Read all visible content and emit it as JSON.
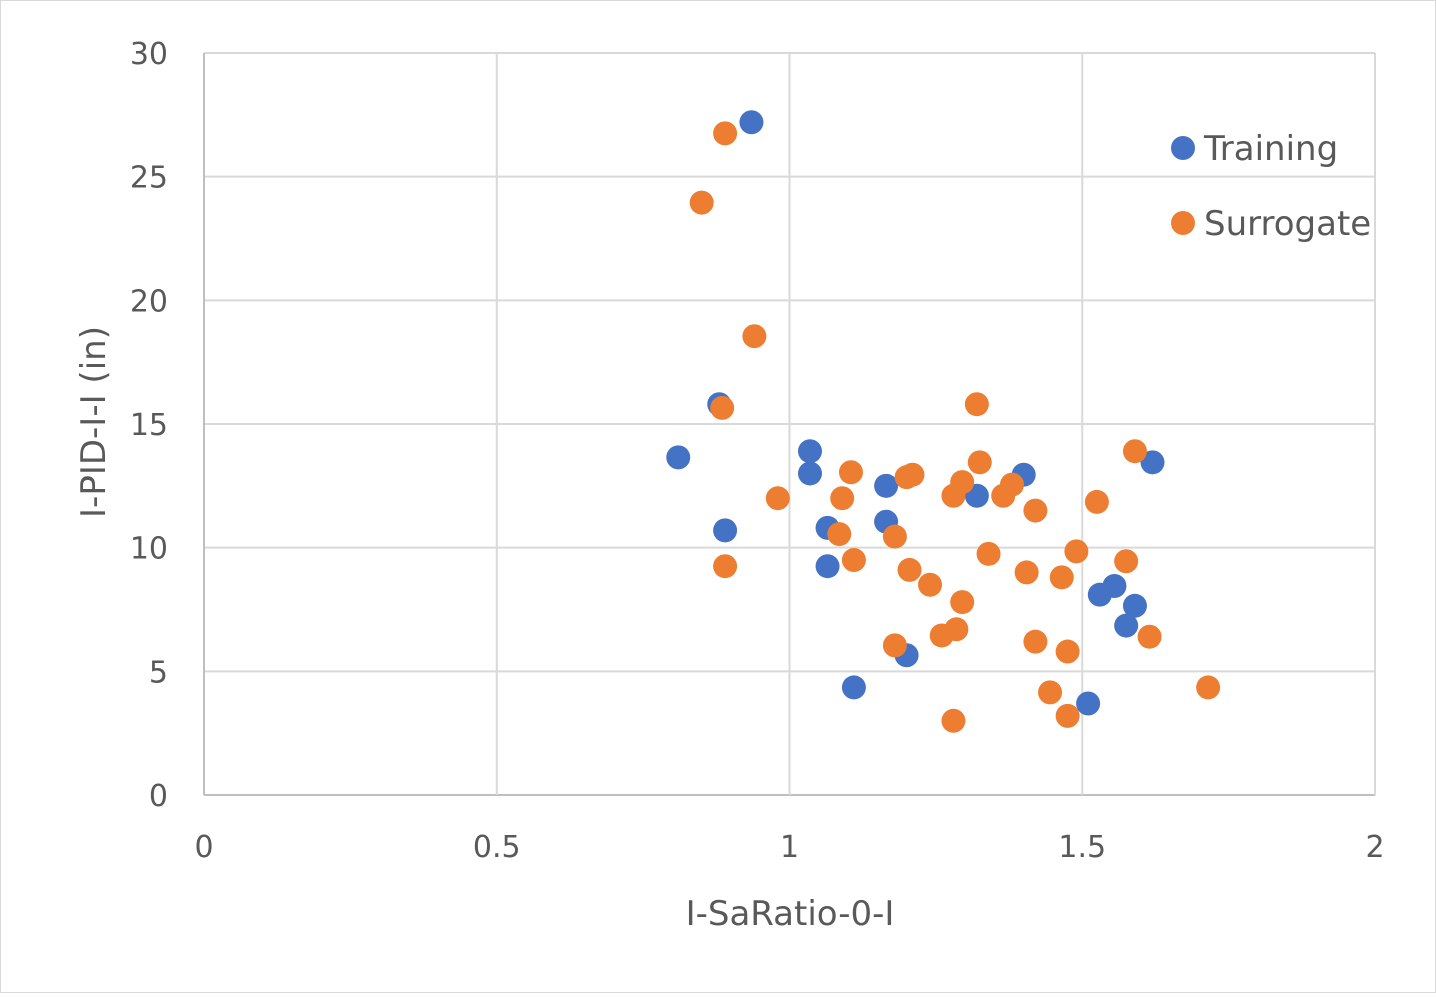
{
  "chart_data": {
    "type": "scatter",
    "title": "",
    "xlabel": "I-SaRatio-0-I",
    "ylabel": "I-PID-I-I (in)",
    "xlim": [
      0,
      2
    ],
    "ylim": [
      0,
      30
    ],
    "x_ticks": [
      0,
      0.5,
      1,
      1.5,
      2
    ],
    "y_ticks": [
      0,
      5,
      10,
      15,
      20,
      25,
      30
    ],
    "x_tick_labels": [
      "0",
      "0.5",
      "1",
      "1.5",
      "2"
    ],
    "y_tick_labels": [
      "0",
      "5",
      "10",
      "15",
      "20",
      "25",
      "30"
    ],
    "grid": true,
    "legend_position": "top-right",
    "series": [
      {
        "name": "Training",
        "color": "#4472c4",
        "points": [
          [
            0.935,
            27.2
          ],
          [
            0.88,
            15.8
          ],
          [
            0.81,
            13.65
          ],
          [
            0.89,
            10.7
          ],
          [
            1.035,
            13.9
          ],
          [
            1.035,
            13.0
          ],
          [
            1.065,
            10.8
          ],
          [
            1.065,
            9.25
          ],
          [
            1.11,
            4.35
          ],
          [
            1.165,
            12.5
          ],
          [
            1.165,
            11.05
          ],
          [
            1.2,
            5.65
          ],
          [
            1.32,
            12.1
          ],
          [
            1.4,
            12.95
          ],
          [
            1.51,
            3.7
          ],
          [
            1.53,
            8.1
          ],
          [
            1.555,
            8.45
          ],
          [
            1.575,
            6.85
          ],
          [
            1.59,
            7.65
          ],
          [
            1.62,
            13.45
          ]
        ]
      },
      {
        "name": "Surrogate",
        "color": "#ed7d31",
        "points": [
          [
            0.89,
            26.75
          ],
          [
            0.85,
            23.95
          ],
          [
            0.94,
            18.55
          ],
          [
            0.885,
            15.65
          ],
          [
            0.89,
            9.25
          ],
          [
            0.98,
            12.0
          ],
          [
            1.085,
            10.55
          ],
          [
            1.09,
            12.0
          ],
          [
            1.105,
            13.05
          ],
          [
            1.11,
            9.5
          ],
          [
            1.18,
            10.45
          ],
          [
            1.18,
            6.05
          ],
          [
            1.2,
            12.85
          ],
          [
            1.205,
            9.1
          ],
          [
            1.21,
            12.95
          ],
          [
            1.24,
            8.5
          ],
          [
            1.26,
            6.45
          ],
          [
            1.28,
            12.1
          ],
          [
            1.28,
            3.0
          ],
          [
            1.285,
            6.7
          ],
          [
            1.295,
            7.8
          ],
          [
            1.295,
            12.65
          ],
          [
            1.32,
            15.8
          ],
          [
            1.325,
            13.45
          ],
          [
            1.34,
            9.75
          ],
          [
            1.365,
            12.1
          ],
          [
            1.38,
            12.55
          ],
          [
            1.405,
            9.0
          ],
          [
            1.42,
            11.5
          ],
          [
            1.42,
            6.2
          ],
          [
            1.445,
            4.15
          ],
          [
            1.465,
            8.8
          ],
          [
            1.475,
            5.8
          ],
          [
            1.475,
            3.2
          ],
          [
            1.49,
            9.85
          ],
          [
            1.525,
            11.85
          ],
          [
            1.575,
            9.45
          ],
          [
            1.59,
            13.9
          ],
          [
            1.615,
            6.4
          ],
          [
            1.715,
            4.35
          ]
        ]
      }
    ]
  }
}
